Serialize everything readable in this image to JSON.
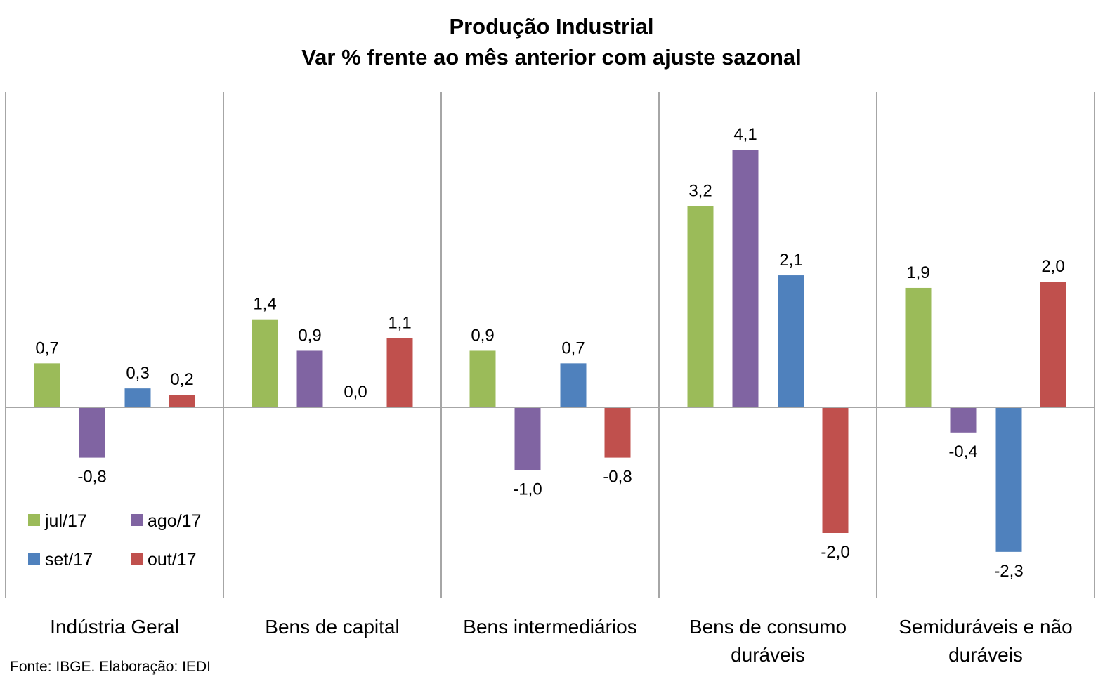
{
  "chart_data": {
    "type": "bar",
    "title": "Produção Industrial",
    "subtitle": "Var % frente ao mês anterior com ajuste sazonal",
    "xlabel": "",
    "ylabel": "",
    "ylim": [
      -3.0,
      5.0
    ],
    "grid": false,
    "legend_position": "bottom-left",
    "categories": [
      "Indústria Geral",
      "Bens de capital",
      "Bens intermediários",
      "Bens de consumo duráveis",
      "Semiduráveis e não duráveis"
    ],
    "category_lines": [
      [
        "Indústria Geral"
      ],
      [
        "Bens de capital"
      ],
      [
        "Bens intermediários"
      ],
      [
        "Bens de consumo",
        "duráveis"
      ],
      [
        "Semiduráveis e não",
        "duráveis"
      ]
    ],
    "series": [
      {
        "name": "jul/17",
        "color": "#9BBB59",
        "values": [
          0.7,
          1.4,
          0.9,
          3.2,
          1.9
        ],
        "labels": [
          "0,7",
          "1,4",
          "0,9",
          "3,2",
          "1,9"
        ]
      },
      {
        "name": "ago/17",
        "color": "#8064A2",
        "values": [
          -0.8,
          0.9,
          -1.0,
          4.1,
          -0.4
        ],
        "labels": [
          "-0,8",
          "0,9",
          "-1,0",
          "4,1",
          "-0,4"
        ]
      },
      {
        "name": "set/17",
        "color": "#4F81BD",
        "values": [
          0.3,
          0.0,
          0.7,
          2.1,
          -2.3
        ],
        "labels": [
          "0,3",
          "0,0",
          "0,7",
          "2,1",
          "-2,3"
        ]
      },
      {
        "name": "out/17",
        "color": "#C0504D",
        "values": [
          0.2,
          1.1,
          -0.8,
          -2.0,
          2.0
        ],
        "labels": [
          "0,2",
          "1,1",
          "-0,8",
          "-2,0",
          "2,0"
        ]
      }
    ],
    "source": "Fonte: IBGE. Elaboração: IEDI"
  }
}
